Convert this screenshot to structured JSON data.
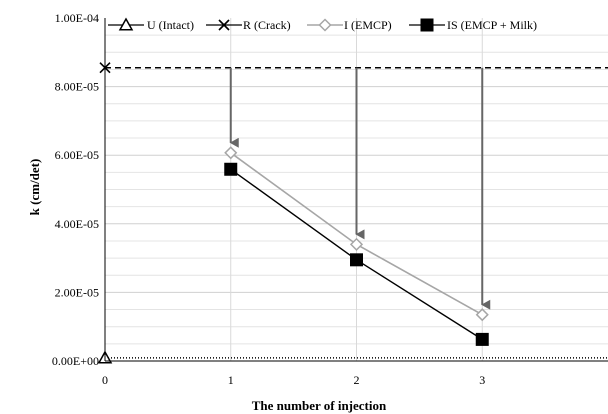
{
  "chart_data": {
    "type": "line",
    "xlabel": "The number of injection",
    "ylabel": "k (cm/det)",
    "x_ticks": [
      "0",
      "1",
      "2",
      "3"
    ],
    "y_ticks": [
      "0.00E+00",
      "2.00E-05",
      "4.00E-05",
      "6.00E-05",
      "8.00E-05",
      "1.00E-04"
    ],
    "xlim": [
      0,
      4
    ],
    "ylim": [
      0,
      0.0001
    ],
    "grid": true,
    "legend_position": "top",
    "series": [
      {
        "name": "U (Intact)",
        "type": "horizontal-line",
        "marker": "triangle",
        "x": [
          0
        ],
        "values": [
          9e-07
        ],
        "color": "#000000"
      },
      {
        "name": "R (Crack)",
        "type": "horizontal-line",
        "marker": "x",
        "x": [
          0
        ],
        "values": [
          8.55e-05
        ],
        "color": "#000000"
      },
      {
        "name": "I (EMCP)",
        "type": "line",
        "marker": "diamond",
        "x": [
          1,
          2,
          3
        ],
        "values": [
          6.07e-05,
          3.4e-05,
          1.35e-05
        ],
        "color": "#a6a6a6"
      },
      {
        "name": "IS (EMCP + Milk)",
        "type": "line",
        "marker": "square",
        "x": [
          1,
          2,
          3
        ],
        "values": [
          5.59e-05,
          2.95e-05,
          6.3e-06
        ],
        "color": "#000000"
      }
    ],
    "annotations": [
      {
        "type": "arrow",
        "x": 1,
        "from": 8.55e-05,
        "to": 6.07e-05
      },
      {
        "type": "arrow",
        "x": 2,
        "from": 8.55e-05,
        "to": 3.4e-05
      },
      {
        "type": "arrow",
        "x": 3,
        "from": 8.55e-05,
        "to": 1.35e-05
      }
    ]
  }
}
